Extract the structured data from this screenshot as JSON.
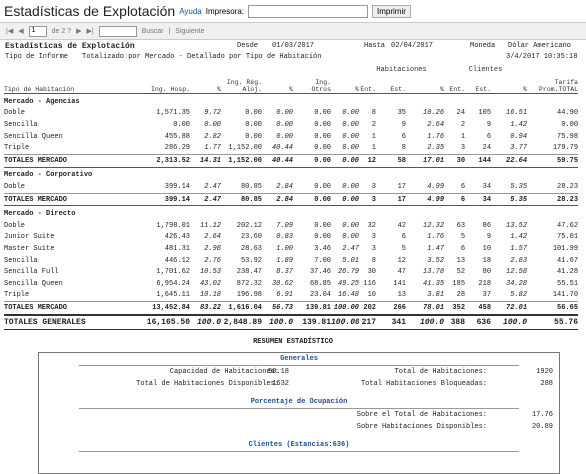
{
  "app": {
    "title": "Estadísticas de Explotación",
    "help": "Ayuda",
    "printer_label": "Impresora:",
    "print": "Imprimir"
  },
  "toolbar": {
    "page": "1",
    "of": "de 2 ?",
    "search": "Buscar",
    "next": "Siguiente"
  },
  "report": {
    "title": "Estadísticas de Explotación",
    "from_label": "Desde",
    "from": "01/03/2017",
    "to_label": "Hasta",
    "to": "02/04/2017",
    "currency_label": "Moneda",
    "currency": "Dólar Americano",
    "type_label": "Tipo de Informe",
    "type": "Totalizado por Mercado - Detallado por Tipo de Habitación",
    "timestamp": "3/4/2017 10:35:18",
    "group_headers": [
      "Habitaciones",
      "Clientes"
    ],
    "columns": [
      "Tipo de Habitación",
      "Ing. Hosp.",
      "%",
      "Ing. Rég. Aloj.",
      "%",
      "Ing. Otros",
      "%",
      "Ent.",
      "Est.",
      "%",
      "Ent.",
      "Est.",
      "%",
      "Tarifa Prom.TOTAL"
    ],
    "sections": [
      {
        "name": "Mercado - Agencias",
        "rows": [
          [
            "Doble",
            "1,571.35",
            "9.72",
            "0.00",
            "0.00",
            "0.00",
            "0.00",
            "8",
            "35",
            "10.26",
            "24",
            "105",
            "16.51",
            "44.90"
          ],
          [
            "Sencilla",
            "0.00",
            "0.00",
            "0.00",
            "0.00",
            "0.00",
            "0.00",
            "2",
            "9",
            "2.64",
            "2",
            "9",
            "1.42",
            "0.00"
          ],
          [
            "Sencilla Queen",
            "455.88",
            "2.82",
            "0.00",
            "0.00",
            "0.00",
            "0.00",
            "1",
            "6",
            "1.76",
            "1",
            "6",
            "0.94",
            "75.98"
          ],
          [
            "Triple",
            "286.29",
            "1.77",
            "1,152.00",
            "40.44",
            "0.00",
            "0.00",
            "1",
            "8",
            "2.35",
            "3",
            "24",
            "3.77",
            "179.79"
          ]
        ],
        "totals": [
          "TOTALES MERCADO",
          "2,313.52",
          "14.31",
          "1,152.00",
          "40.44",
          "0.00",
          "0.00",
          "12",
          "58",
          "17.01",
          "30",
          "144",
          "22.64",
          "59.75"
        ]
      },
      {
        "name": "Mercado - Corporativo",
        "rows": [
          [
            "Doble",
            "399.14",
            "2.47",
            "80.85",
            "2.84",
            "0.00",
            "0.00",
            "3",
            "17",
            "4.99",
            "6",
            "34",
            "5.35",
            "28.23"
          ]
        ],
        "totals": [
          "TOTALES MERCADO",
          "399.14",
          "2.47",
          "80.85",
          "2.84",
          "0.00",
          "0.00",
          "3",
          "17",
          "4.99",
          "6",
          "34",
          "5.35",
          "28.23"
        ]
      },
      {
        "name": "Mercado - Directo",
        "rows": [
          [
            "Doble",
            "1,798.01",
            "11.12",
            "202.12",
            "7.09",
            "0.00",
            "0.00",
            "32",
            "42",
            "12.32",
            "63",
            "86",
            "13.52",
            "47.62"
          ],
          [
            "Junior Suite",
            "426.43",
            "2.64",
            "23.60",
            "0.83",
            "0.00",
            "0.00",
            "3",
            "6",
            "1.76",
            "5",
            "9",
            "1.42",
            "75.01"
          ],
          [
            "Master Suite",
            "481.31",
            "2.98",
            "28.63",
            "1.00",
            "3.46",
            "2.47",
            "3",
            "5",
            "1.47",
            "6",
            "10",
            "1.57",
            "101.99"
          ],
          [
            "Sencilla",
            "446.12",
            "2.76",
            "53.92",
            "1.89",
            "7.00",
            "5.01",
            "8",
            "12",
            "3.52",
            "13",
            "18",
            "2.83",
            "41.67"
          ],
          [
            "Sencilla Full",
            "1,701.62",
            "10.53",
            "238.47",
            "8.37",
            "37.46",
            "26.79",
            "30",
            "47",
            "13.78",
            "52",
            "80",
            "12.58",
            "41.28"
          ],
          [
            "Sencilla Queen",
            "6,954.24",
            "43.02",
            "872.32",
            "30.62",
            "68.85",
            "49.25",
            "116",
            "141",
            "41.35",
            "185",
            "218",
            "34.28",
            "55.51"
          ],
          [
            "Triple",
            "1,645.11",
            "10.18",
            "196.98",
            "6.91",
            "23.04",
            "16.48",
            "10",
            "13",
            "3.81",
            "28",
            "37",
            "5.82",
            "141.70"
          ]
        ],
        "totals": [
          "TOTALES MERCADO",
          "13,452.84",
          "83.22",
          "1,616.04",
          "56.73",
          "139.81",
          "100.00",
          "202",
          "266",
          "78.01",
          "352",
          "458",
          "72.01",
          "56.65"
        ]
      }
    ],
    "grand_totals": [
      "TOTALES GENERALES",
      "16,165.50",
      "100.0",
      "2,848.89",
      "100.0",
      "139.81",
      "100.00",
      "217",
      "341",
      "100.0",
      "388",
      "636",
      "100.0",
      "55.76"
    ],
    "summary": {
      "title": "RESUMEN ESTADÍSTICO",
      "general_title": "Generales",
      "general": [
        [
          "Capacidad de Habitaciones:",
          "58.18",
          "Total de Habitaciones:",
          "1920"
        ],
        [
          "Total de Habitaciones Disponibles:",
          "1632",
          "Total Habitaciones Bloqueadas:",
          "288"
        ]
      ],
      "occupancy_title": "Porcentaje de Ocupación",
      "occupancy": [
        [
          "Sobre el Total de Habitaciones:",
          "17.76"
        ],
        [
          "Sobre Habitaciones Disponibles:",
          "20.89"
        ]
      ],
      "clients_title": "Clientes (Estancias:636)"
    }
  }
}
